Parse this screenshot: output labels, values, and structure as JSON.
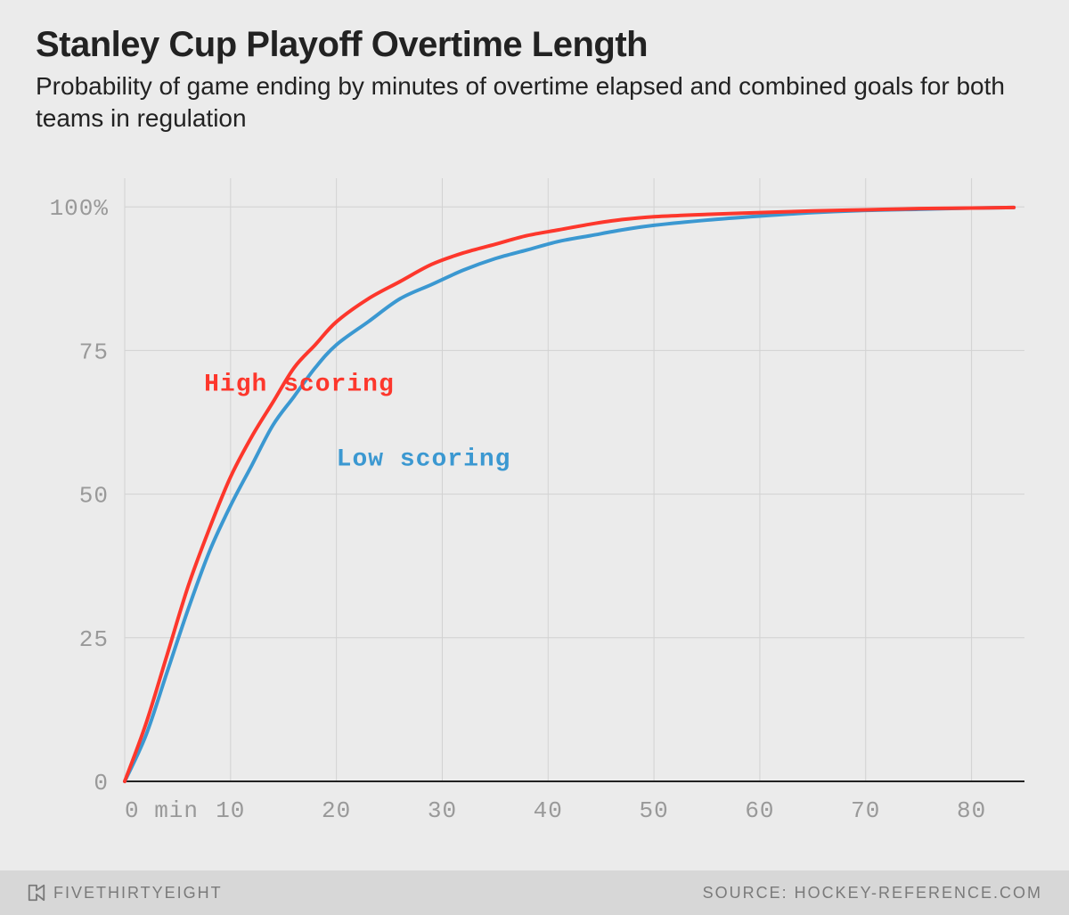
{
  "header": {
    "title": "Stanley Cup Playoff Overtime Length",
    "subtitle": "Probability of game ending by minutes of overtime elapsed and combined goals for both teams in regulation"
  },
  "chart": {
    "type": "line",
    "background_color": "#ebebeb",
    "grid_color": "#d2d2d2",
    "axis_color": "#222222",
    "tick_label_color": "#999999",
    "line_width": 4,
    "xlim": [
      0,
      85
    ],
    "ylim": [
      0,
      105
    ],
    "xtick_values": [
      0,
      10,
      20,
      30,
      40,
      50,
      60,
      70,
      80
    ],
    "xtick_labels": [
      "0 min",
      "10",
      "20",
      "30",
      "40",
      "50",
      "60",
      "70",
      "80"
    ],
    "ytick_values": [
      0,
      25,
      50,
      75,
      100
    ],
    "ytick_labels": [
      "0",
      "25",
      "50",
      "75",
      "100%"
    ],
    "series": [
      {
        "name": "High scoring",
        "label": "High scoring",
        "color": "#fd372c",
        "label_x": 7.5,
        "label_y": 68,
        "points": [
          [
            0,
            0
          ],
          [
            2,
            10
          ],
          [
            4,
            22
          ],
          [
            6,
            34
          ],
          [
            8,
            44
          ],
          [
            10,
            53
          ],
          [
            12,
            60
          ],
          [
            14,
            66
          ],
          [
            16,
            72
          ],
          [
            18,
            76
          ],
          [
            20,
            80
          ],
          [
            23,
            84
          ],
          [
            26,
            87
          ],
          [
            29,
            90
          ],
          [
            32,
            92
          ],
          [
            35,
            93.5
          ],
          [
            38,
            95
          ],
          [
            41,
            96
          ],
          [
            44,
            97
          ],
          [
            47,
            97.8
          ],
          [
            50,
            98.3
          ],
          [
            55,
            98.7
          ],
          [
            60,
            99
          ],
          [
            65,
            99.3
          ],
          [
            70,
            99.5
          ],
          [
            75,
            99.7
          ],
          [
            80,
            99.8
          ],
          [
            84,
            99.9
          ]
        ]
      },
      {
        "name": "Low scoring",
        "label": "Low scoring",
        "color": "#3b98d1",
        "label_x": 20,
        "label_y": 55,
        "points": [
          [
            0,
            0
          ],
          [
            2,
            8
          ],
          [
            4,
            19
          ],
          [
            6,
            30
          ],
          [
            8,
            40
          ],
          [
            10,
            48
          ],
          [
            12,
            55
          ],
          [
            14,
            62
          ],
          [
            16,
            67
          ],
          [
            18,
            72
          ],
          [
            20,
            76
          ],
          [
            23,
            80
          ],
          [
            26,
            84
          ],
          [
            29,
            86.5
          ],
          [
            32,
            89
          ],
          [
            35,
            91
          ],
          [
            38,
            92.5
          ],
          [
            41,
            94
          ],
          [
            44,
            95
          ],
          [
            47,
            96
          ],
          [
            50,
            96.8
          ],
          [
            55,
            97.7
          ],
          [
            60,
            98.4
          ],
          [
            65,
            99
          ],
          [
            70,
            99.4
          ],
          [
            75,
            99.6
          ],
          [
            80,
            99.8
          ],
          [
            84,
            99.9
          ]
        ]
      }
    ]
  },
  "footer": {
    "brand": "FIVETHIRTYEIGHT",
    "source_prefix": "SOURCE: ",
    "source": "HOCKEY-REFERENCE.COM"
  }
}
